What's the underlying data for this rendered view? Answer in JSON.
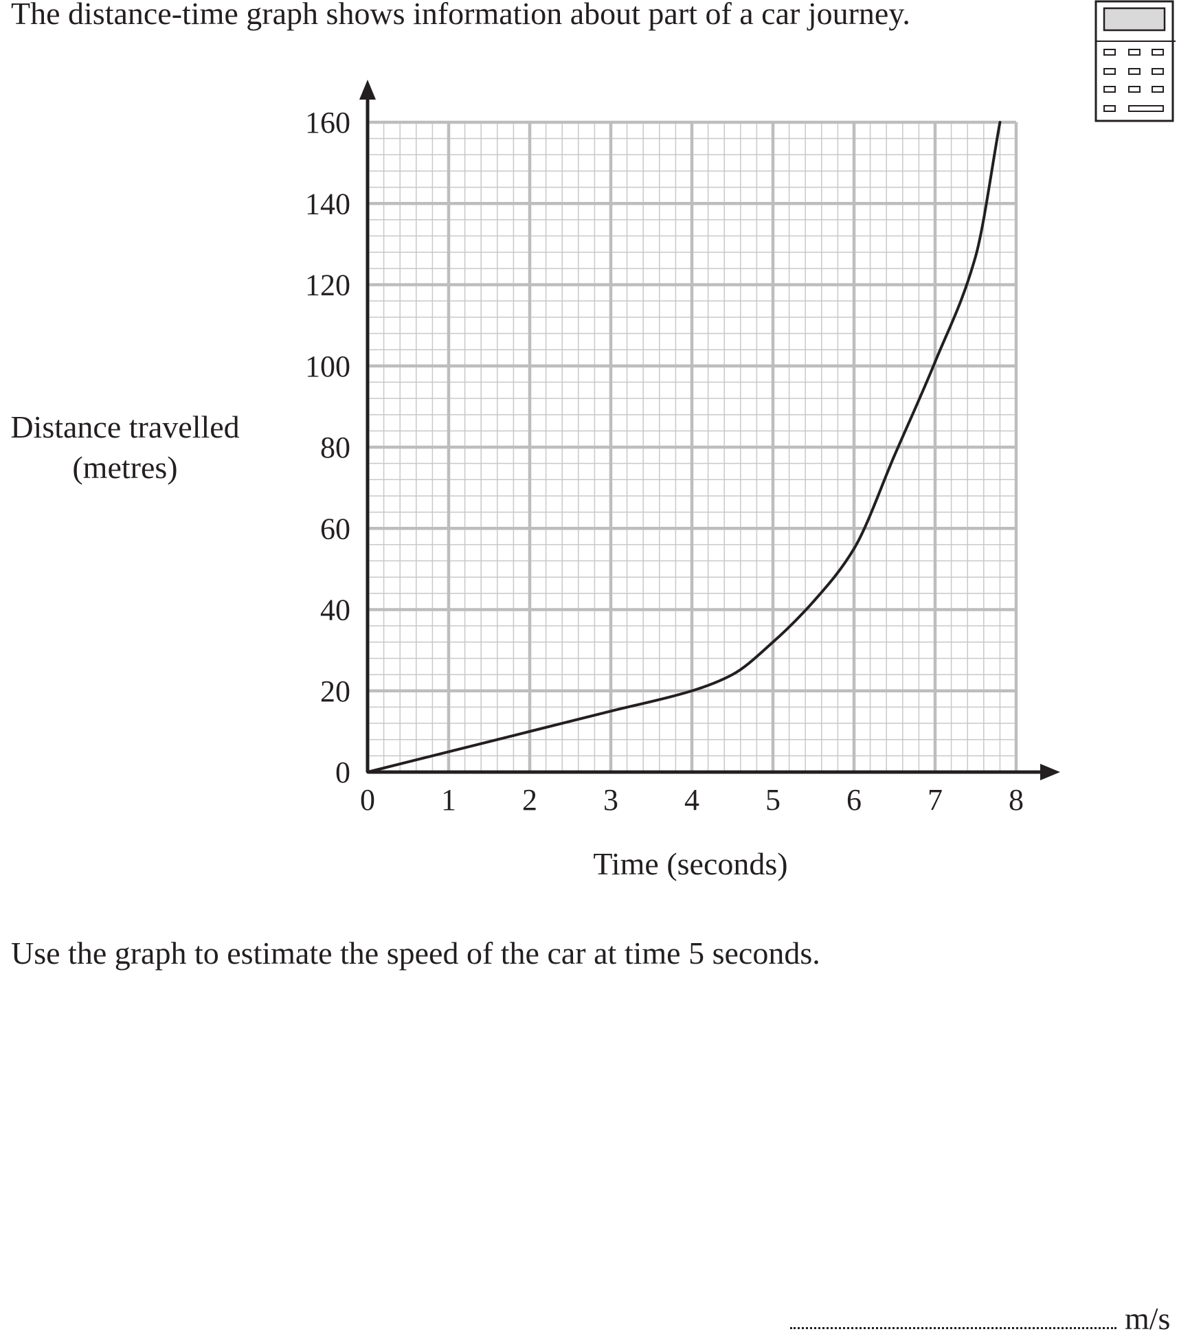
{
  "question": {
    "intro": "The distance-time graph shows information about part of a car journey.",
    "prompt": "Use the graph to estimate the speed of the car at time 5 seconds.",
    "answer_unit": "m/s"
  },
  "icons": {
    "calculator": "calculator-icon"
  },
  "colors": {
    "grid_minor": "#c8c8c8",
    "grid_major": "#bdbdbd",
    "axis": "#231f20",
    "curve": "#231f20"
  },
  "chart_data": {
    "type": "line",
    "title": "",
    "xlabel": "Time (seconds)",
    "ylabel_line1": "Distance travelled",
    "ylabel_line2": "(metres)",
    "xlim": [
      0,
      8
    ],
    "ylim": [
      0,
      160
    ],
    "x_ticks": [
      0,
      1,
      2,
      3,
      4,
      5,
      6,
      7,
      8
    ],
    "y_ticks": [
      0,
      20,
      40,
      60,
      80,
      100,
      120,
      140,
      160
    ],
    "x_minor_step": 0.2,
    "y_minor_step": 4,
    "grid": true,
    "legend": "none",
    "series": [
      {
        "x": [
          0,
          1,
          2,
          3,
          4,
          4.5,
          5,
          5.5,
          6,
          6.5,
          7,
          7.5,
          7.8
        ],
        "y": [
          0,
          5,
          10,
          15,
          20,
          24,
          32,
          42,
          55,
          78,
          101,
          127,
          160
        ]
      }
    ]
  }
}
